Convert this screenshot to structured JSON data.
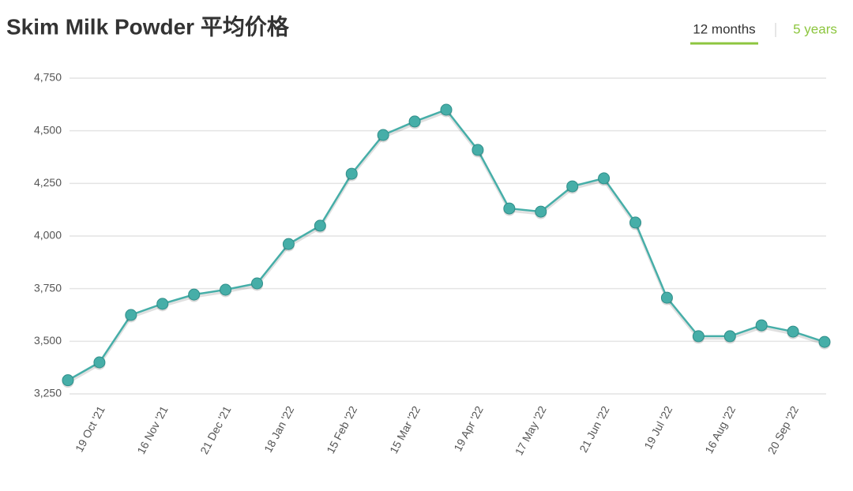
{
  "chart_data": {
    "type": "line",
    "title": "Skim Milk Powder 平均价格",
    "tabs": [
      "12 months",
      "5 years"
    ],
    "categories": [
      null,
      "19 Oct '21",
      null,
      "16 Nov '21",
      null,
      "21 Dec '21",
      null,
      "18 Jan '22",
      null,
      "15 Feb '22",
      null,
      "15 Mar '22",
      null,
      "19 Apr '22",
      null,
      "17 May '22",
      null,
      "21 Jun '22",
      null,
      "19 Jul '22",
      null,
      "16 Aug '22",
      null,
      "20 Sep '22",
      null
    ],
    "values": [
      3315,
      3400,
      3625,
      3678,
      3722,
      3745,
      3775,
      3962,
      4049,
      4296,
      4480,
      4544,
      4600,
      4409,
      4131,
      4116,
      4236,
      4274,
      4064,
      3707,
      3524,
      3524,
      3576,
      3546,
      3497
    ],
    "color": "#46aea8",
    "ylim": [
      3250,
      4750
    ],
    "yticks": [
      {
        "value": 3250,
        "label": "3,250"
      },
      {
        "value": 3500,
        "label": "3,500"
      },
      {
        "value": 3750,
        "label": "3,750"
      },
      {
        "value": 4000,
        "label": "4,000"
      },
      {
        "value": 4250,
        "label": "4,250"
      },
      {
        "value": 4500,
        "label": "4,500"
      },
      {
        "value": 4750,
        "label": "4,750"
      }
    ],
    "grid": true
  }
}
